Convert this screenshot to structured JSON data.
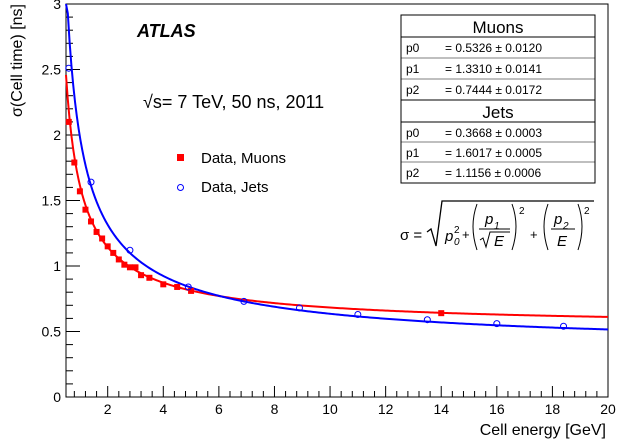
{
  "chart_data": {
    "type": "scatter",
    "title": "",
    "xlabel": "Cell energy [GeV]",
    "ylabel": "σ(Cell time) [ns]",
    "xlim": [
      0.5,
      20
    ],
    "ylim": [
      0,
      3
    ],
    "xticks": [
      "2",
      "4",
      "6",
      "8",
      "10",
      "12",
      "14",
      "16",
      "18",
      "20"
    ],
    "yticks": [
      "0",
      "0.5",
      "1",
      "1.5",
      "2",
      "2.5",
      "3"
    ],
    "experiment": "ATLAS",
    "conditions": "√s= 7 TeV, 50 ns, 2011",
    "legend_position": "middle-left",
    "series": [
      {
        "name": "Data, Muons",
        "color": "#ff0000",
        "marker": "filled-square",
        "x": [
          0.6,
          0.8,
          1.0,
          1.2,
          1.4,
          1.6,
          1.8,
          2.0,
          2.2,
          2.4,
          2.6,
          2.8,
          3.0,
          3.2,
          3.5,
          4.0,
          4.5,
          5.0,
          14.0
        ],
        "y": [
          2.1,
          1.79,
          1.57,
          1.43,
          1.34,
          1.26,
          1.21,
          1.15,
          1.1,
          1.05,
          1.01,
          0.99,
          0.99,
          0.93,
          0.91,
          0.86,
          0.84,
          0.81,
          0.64
        ],
        "fit": {
          "p0": 0.5326,
          "p1": 1.331,
          "p2": 0.7444
        }
      },
      {
        "name": "Data, Jets",
        "color": "#0000ff",
        "marker": "open-circle",
        "x": [
          0.6,
          1.4,
          2.8,
          4.9,
          6.9,
          8.9,
          11.0,
          13.5,
          16.0,
          18.4
        ],
        "y": [
          2.51,
          1.64,
          1.12,
          0.84,
          0.73,
          0.68,
          0.63,
          0.59,
          0.56,
          0.54
        ],
        "fit": {
          "p0": 0.3668,
          "p1": 1.6017,
          "p2": 1.1156
        }
      }
    ],
    "fit_table": {
      "muons": {
        "title": "Muons",
        "rows": [
          {
            "name": "p0",
            "value": "= 0.5326 ± 0.0120"
          },
          {
            "name": "p1",
            "value": "= 1.3310 ± 0.0141"
          },
          {
            "name": "p2",
            "value": "= 0.7444 ± 0.0172"
          }
        ]
      },
      "jets": {
        "title": "Jets",
        "rows": [
          {
            "name": "p0",
            "value": "= 0.3668 ± 0.0003"
          },
          {
            "name": "p1",
            "value": "= 1.6017 ± 0.0005"
          },
          {
            "name": "p2",
            "value": "= 1.1156 ± 0.0006"
          }
        ]
      }
    },
    "formula": {
      "lhs": "σ =",
      "p0": "p",
      "p0_sub": "0",
      "p0_sup": "2",
      "p1": "p",
      "p1_sub": "1",
      "sqrtE": "E",
      "p2": "p",
      "p2_sub": "2",
      "E": "E",
      "plus": "+",
      "square": "2"
    }
  }
}
